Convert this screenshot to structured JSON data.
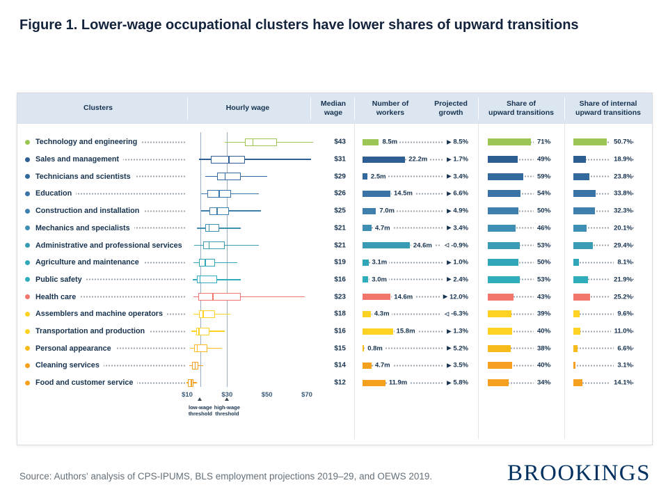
{
  "figure": {
    "title": "Figure 1. Lower-wage occupational clusters have lower shares of upward transitions",
    "source": "Source:  Authors' analysis of CPS-IPUMS, BLS employment projections 2019–29, and OEWS 2019.",
    "logo": "BROOKINGS"
  },
  "chart_data": {
    "type": "table",
    "columns": [
      "Clusters",
      "Hourly wage",
      "Median\nwage",
      "Number of\nworkers",
      "Projected\ngrowth",
      "Share of\nupward transitions",
      "Share of internal\nupward transitions"
    ],
    "axis": {
      "label": "Hourly wage ($)",
      "range": [
        10,
        70
      ],
      "ticks": [
        "$10",
        "$30",
        "$50",
        "$70"
      ],
      "tick_values": [
        10,
        30,
        50,
        70
      ],
      "thresholds": [
        {
          "label": "low-wage\nthreshold",
          "value": 16.6
        },
        {
          "label": "high-wage\nthreshold",
          "value": 30
        }
      ]
    },
    "units": {
      "workers": "millions",
      "growth": "percent",
      "shares": "percent"
    },
    "rows": [
      {
        "cluster": "Technology and engineering",
        "color": "#9cc653",
        "median_wage": "$43",
        "box": {
          "lo": 29,
          "q1": 39,
          "med": 43,
          "q3": 55,
          "hi": 73
        },
        "workers_m": 8.5,
        "workers_label": "8.5m",
        "growth_pct": 8.5,
        "growth_label": "8.5%",
        "upward_pct": 71,
        "upward_label": "71%",
        "internal_pct": 50.7,
        "internal_label": "50.7%"
      },
      {
        "cluster": "Sales and management",
        "color": "#2d5f94",
        "median_wage": "$31",
        "box": {
          "lo": 16,
          "q1": 22,
          "med": 31,
          "q3": 39,
          "hi": 72
        },
        "workers_m": 22.2,
        "workers_label": "22.2m",
        "growth_pct": 1.7,
        "growth_label": "1.7%",
        "upward_pct": 49,
        "upward_label": "49%",
        "internal_pct": 18.9,
        "internal_label": "18.9%"
      },
      {
        "cluster": "Technicians and scientists",
        "color": "#336a9e",
        "median_wage": "$29",
        "box": {
          "lo": 19,
          "q1": 25,
          "med": 29,
          "q3": 37,
          "hi": 50
        },
        "workers_m": 2.5,
        "workers_label": "2.5m",
        "growth_pct": 3.4,
        "growth_label": "3.4%",
        "upward_pct": 59,
        "upward_label": "59%",
        "internal_pct": 23.8,
        "internal_label": "23.8%"
      },
      {
        "cluster": "Education",
        "color": "#3a73a6",
        "median_wage": "$26",
        "box": {
          "lo": 17,
          "q1": 20,
          "med": 26,
          "q3": 32,
          "hi": 46
        },
        "workers_m": 14.5,
        "workers_label": "14.5m",
        "growth_pct": 6.6,
        "growth_label": "6.6%",
        "upward_pct": 54,
        "upward_label": "54%",
        "internal_pct": 33.8,
        "internal_label": "33.8%"
      },
      {
        "cluster": "Construction and installation",
        "color": "#3f7fae",
        "median_wage": "$25",
        "box": {
          "lo": 17,
          "q1": 21,
          "med": 25,
          "q3": 31,
          "hi": 47
        },
        "workers_m": 7.0,
        "workers_label": "7.0m",
        "growth_pct": 4.9,
        "growth_label": "4.9%",
        "upward_pct": 50,
        "upward_label": "50%",
        "internal_pct": 32.3,
        "internal_label": "32.3%"
      },
      {
        "cluster": "Mechanics and specialists",
        "color": "#3f8fb4",
        "median_wage": "$21",
        "box": {
          "lo": 15,
          "q1": 19,
          "med": 21,
          "q3": 26,
          "hi": 37
        },
        "workers_m": 4.7,
        "workers_label": "4.7m",
        "growth_pct": 3.4,
        "growth_label": "3.4%",
        "upward_pct": 46,
        "upward_label": "46%",
        "internal_pct": 20.1,
        "internal_label": "20.1%"
      },
      {
        "cluster": "Administrative and professional services",
        "color": "#399cb4",
        "median_wage": "$21",
        "box": {
          "lo": 13.5,
          "q1": 18,
          "med": 21,
          "q3": 29,
          "hi": 46
        },
        "workers_m": 24.6,
        "workers_label": "24.6m",
        "growth_pct": -0.9,
        "growth_label": "-0.9%",
        "upward_pct": 53,
        "upward_label": "53%",
        "internal_pct": 29.4,
        "internal_label": "29.4%"
      },
      {
        "cluster": "Agriculture and maintenance",
        "color": "#30a7b8",
        "median_wage": "$19",
        "box": {
          "lo": 13,
          "q1": 16,
          "med": 19,
          "q3": 24,
          "hi": 35
        },
        "workers_m": 3.1,
        "workers_label": "3.1m",
        "growth_pct": 1.0,
        "growth_label": "1.0%",
        "upward_pct": 50,
        "upward_label": "50%",
        "internal_pct": 8.1,
        "internal_label": "8.1%"
      },
      {
        "cluster": "Public safety",
        "color": "#2fadbd",
        "median_wage": "$16",
        "box": {
          "lo": 12.8,
          "q1": 15,
          "med": 16.5,
          "q3": 25,
          "hi": 37
        },
        "workers_m": 3.0,
        "workers_label": "3.0m",
        "growth_pct": 2.4,
        "growth_label": "2.4%",
        "upward_pct": 53,
        "upward_label": "53%",
        "internal_pct": 21.9,
        "internal_label": "21.9%"
      },
      {
        "cluster": "Health care",
        "color": "#f3766d",
        "median_wage": "$23",
        "box": {
          "lo": 13,
          "q1": 15.5,
          "med": 23,
          "q3": 37,
          "hi": 69
        },
        "workers_m": 14.6,
        "workers_label": "14.6m",
        "growth_pct": 12.0,
        "growth_label": "12.0%",
        "upward_pct": 43,
        "upward_label": "43%",
        "internal_pct": 25.2,
        "internal_label": "25.2%"
      },
      {
        "cluster": "Assemblers and machine operators",
        "color": "#fdd223",
        "median_wage": "$18",
        "box": {
          "lo": 13,
          "q1": 16,
          "med": 18,
          "q3": 24,
          "hi": 31.5
        },
        "workers_m": 4.3,
        "workers_label": "4.3m",
        "growth_pct": -6.3,
        "growth_label": "-6.3%",
        "upward_pct": 39,
        "upward_label": "39%",
        "internal_pct": 9.6,
        "internal_label": "9.6%"
      },
      {
        "cluster": "Transportation and production",
        "color": "#fdd223",
        "median_wage": "$16",
        "box": {
          "lo": 12,
          "q1": 14.5,
          "med": 16,
          "q3": 21,
          "hi": 29
        },
        "workers_m": 15.8,
        "workers_label": "15.8m",
        "growth_pct": 1.3,
        "growth_label": "1.3%",
        "upward_pct": 40,
        "upward_label": "40%",
        "internal_pct": 11.0,
        "internal_label": "11.0%"
      },
      {
        "cluster": "Personal appearance",
        "color": "#f8bb1c",
        "median_wage": "$15",
        "box": {
          "lo": 11.4,
          "q1": 13.5,
          "med": 15,
          "q3": 20,
          "hi": 27.5
        },
        "workers_m": 0.8,
        "workers_label": "0.8m",
        "growth_pct": 5.2,
        "growth_label": "5.2%",
        "upward_pct": 38,
        "upward_label": "38%",
        "internal_pct": 6.6,
        "internal_label": "6.6%"
      },
      {
        "cluster": "Cleaning services",
        "color": "#f5a01e",
        "median_wage": "$14",
        "box": {
          "lo": 11,
          "q1": 12.5,
          "med": 14,
          "q3": 15.5,
          "hi": 18
        },
        "workers_m": 4.7,
        "workers_label": "4.7m",
        "growth_pct": 3.5,
        "growth_label": "3.5%",
        "upward_pct": 40,
        "upward_label": "40%",
        "internal_pct": 3.1,
        "internal_label": "3.1%"
      },
      {
        "cluster": "Food and customer service",
        "color": "#f5a01e",
        "median_wage": "$12",
        "box": {
          "lo": 9.5,
          "q1": 10.5,
          "med": 12,
          "q3": 13,
          "hi": 15
        },
        "workers_m": 11.9,
        "workers_label": "11.9m",
        "growth_pct": 5.8,
        "growth_label": "5.8%",
        "upward_pct": 34,
        "upward_label": "34%",
        "internal_pct": 14.1,
        "internal_label": "14.1%"
      }
    ]
  }
}
